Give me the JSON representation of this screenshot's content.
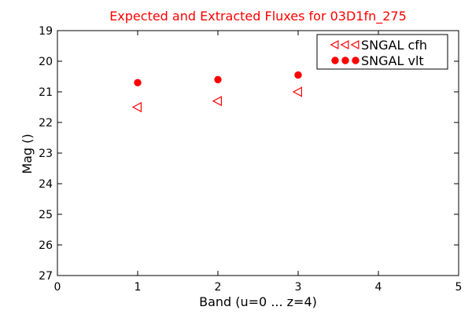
{
  "chart_data": {
    "type": "scatter",
    "title": "Expected and Extracted Fluxes for 03D1fn_275",
    "xlabel": "Band (u=0 ... z=4)",
    "ylabel": "Mag ()",
    "xlim": [
      0,
      5
    ],
    "ylim": [
      27,
      19
    ],
    "y_inverted": true,
    "x_ticks": [
      "0",
      "1",
      "2",
      "3",
      "4",
      "5"
    ],
    "y_ticks": [
      "19",
      "20",
      "21",
      "22",
      "23",
      "24",
      "25",
      "26",
      "27"
    ],
    "grid": false,
    "legend_position": "top-right",
    "series": [
      {
        "name": "SNGAL cfh",
        "marker": "triangle-left-open",
        "color": "#ff0000",
        "x": [
          1,
          2,
          3
        ],
        "y": [
          21.5,
          21.3,
          21.0
        ]
      },
      {
        "name": "SNGAL vlt",
        "marker": "circle-filled",
        "color": "#ff0000",
        "x": [
          1,
          2,
          3
        ],
        "y": [
          20.7,
          20.6,
          20.45
        ]
      }
    ]
  },
  "colors": {
    "title": "#ff0000",
    "axes": "#000000",
    "marker": "#ff0000"
  }
}
